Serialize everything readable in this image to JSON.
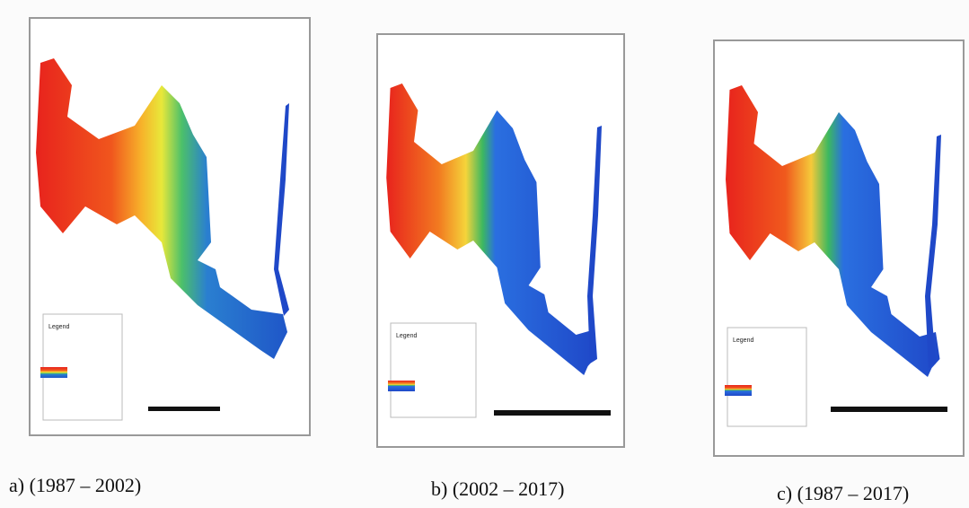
{
  "panels": [
    {
      "caption": "a)  (1987 – 2002)",
      "legend_title": "Legend"
    },
    {
      "caption": "b)  (2002 – 2017)",
      "legend_title": "Legend"
    },
    {
      "caption": "c)  (1987 – 2017)",
      "legend_title": "Legend"
    }
  ]
}
